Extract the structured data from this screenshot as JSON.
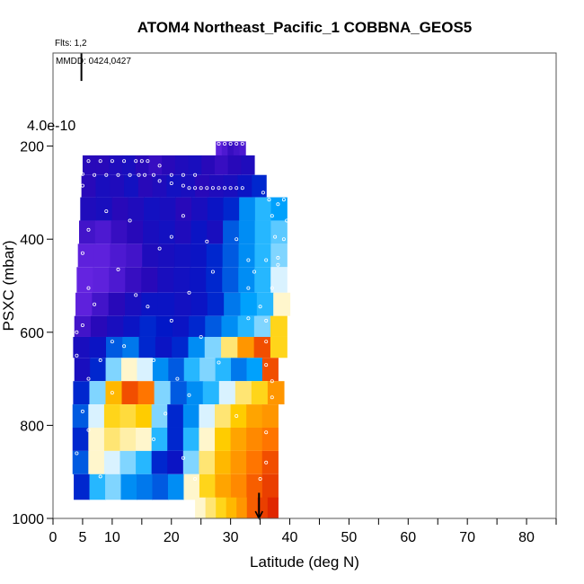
{
  "chart_data": {
    "type": "heatmap",
    "title": "ATOM4 Northeast_Pacific_1 COBBNA_GEOS5",
    "annotations": {
      "flights": "Flts: 1,2",
      "dates": "MMDD: 0424,0427",
      "scale": "4.0e-10"
    },
    "xlabel": "Latitude (deg N)",
    "ylabel": "PSXC (mbar)",
    "xlim": [
      0,
      85
    ],
    "ylim": [
      1000,
      0
    ],
    "x_ticks": [
      0,
      5,
      10,
      20,
      30,
      40,
      50,
      60,
      70,
      80
    ],
    "x_tick_labels": [
      "0",
      "5",
      "10",
      "20",
      "30",
      "40",
      "50",
      "60",
      "70",
      "80"
    ],
    "x_minor_ticks": [
      15,
      25,
      35,
      45,
      55,
      65,
      75,
      85
    ],
    "y_ticks": [
      200,
      400,
      600,
      800,
      1000
    ],
    "y_tick_labels": [
      "200",
      "400",
      "600",
      "800",
      "1000"
    ],
    "colormap": [
      "#7a2ff0",
      "#2a08b8",
      "#0018c8",
      "#00aaff",
      "#ffffff",
      "#ffd000",
      "#ff7000",
      "#d00000"
    ],
    "grid": false,
    "rows": [
      {
        "p": [
          190,
          225
        ],
        "lat": [
          27.5,
          32.5
        ],
        "values": [
          0.05,
          0.08,
          0.12,
          0.1,
          0.08
        ]
      },
      {
        "p": [
          220,
          262
        ],
        "lat": [
          5,
          34
        ],
        "values": [
          0.15,
          0.15,
          0.18,
          0.2,
          0.15,
          0.12,
          0.15,
          0.18,
          0.2,
          0.15,
          0.12,
          0.15,
          0.18
        ]
      },
      {
        "p": [
          262,
          310
        ],
        "lat": [
          4.8,
          36
        ],
        "values": [
          0.15,
          0.2,
          0.18,
          0.22,
          0.15,
          0.18,
          0.22,
          0.2,
          0.15,
          0.18,
          0.2,
          0.25,
          0.3
        ]
      },
      {
        "p": [
          310,
          360
        ],
        "lat": [
          4.6,
          39.5
        ],
        "values": [
          0.18,
          0.2,
          0.15,
          0.18,
          0.22,
          0.2,
          0.15,
          0.2,
          0.25,
          0.3,
          0.4,
          0.45,
          0.42
        ]
      },
      {
        "p": [
          360,
          410
        ],
        "lat": [
          4.4,
          39.5
        ],
        "values": [
          0.1,
          0.08,
          0.12,
          0.15,
          0.2,
          0.22,
          0.18,
          0.25,
          0.2,
          0.35,
          0.4,
          0.45,
          0.48
        ]
      },
      {
        "p": [
          410,
          460
        ],
        "lat": [
          4.2,
          39.5
        ],
        "values": [
          0.05,
          0.05,
          0.08,
          0.1,
          0.18,
          0.2,
          0.22,
          0.25,
          0.3,
          0.35,
          0.4,
          0.45,
          0.5
        ]
      },
      {
        "p": [
          460,
          515
        ],
        "lat": [
          4.0,
          39.5
        ],
        "values": [
          0.04,
          0.05,
          0.08,
          0.12,
          0.15,
          0.2,
          0.22,
          0.25,
          0.3,
          0.35,
          0.4,
          0.45,
          0.55
        ]
      },
      {
        "p": [
          515,
          565
        ],
        "lat": [
          3.8,
          40
        ],
        "values": [
          0.05,
          0.1,
          0.15,
          0.2,
          0.25,
          0.25,
          0.22,
          0.25,
          0.3,
          0.38,
          0.42,
          0.45,
          0.6
        ]
      },
      {
        "p": [
          565,
          610
        ],
        "lat": [
          3.6,
          39.5
        ],
        "values": [
          0.1,
          0.15,
          0.2,
          0.25,
          0.3,
          0.28,
          0.25,
          0.3,
          0.35,
          0.4,
          0.45,
          0.5,
          0.7
        ]
      },
      {
        "p": [
          610,
          655
        ],
        "lat": [
          3.4,
          39.5
        ],
        "values": [
          0.2,
          0.25,
          0.35,
          0.38,
          0.3,
          0.25,
          0.3,
          0.4,
          0.5,
          0.65,
          0.8,
          0.9,
          0.7
        ]
      },
      {
        "p": [
          655,
          705
        ],
        "lat": [
          3.6,
          38
        ],
        "values": [
          0.2,
          0.3,
          0.5,
          0.6,
          0.55,
          0.4,
          0.35,
          0.45,
          0.5,
          0.45,
          0.38,
          0.42,
          0.9
        ]
      },
      {
        "p": [
          705,
          755
        ],
        "lat": [
          3.4,
          39
        ],
        "values": [
          0.3,
          0.5,
          0.75,
          0.9,
          0.85,
          0.5,
          0.35,
          0.4,
          0.45,
          0.55,
          0.65,
          0.7,
          0.8
        ]
      },
      {
        "p": [
          755,
          805
        ],
        "lat": [
          3.3,
          38
        ],
        "values": [
          0.35,
          0.55,
          0.7,
          0.68,
          0.72,
          0.5,
          0.3,
          0.4,
          0.55,
          0.65,
          0.72,
          0.78,
          0.8
        ]
      },
      {
        "p": [
          805,
          855
        ],
        "lat": [
          3.3,
          38
        ],
        "values": [
          0.3,
          0.6,
          0.65,
          0.62,
          0.6,
          0.45,
          0.3,
          0.45,
          0.6,
          0.72,
          0.78,
          0.82,
          0.85
        ]
      },
      {
        "p": [
          855,
          905
        ],
        "lat": [
          3.3,
          38
        ],
        "values": [
          0.35,
          0.6,
          0.55,
          0.5,
          0.45,
          0.3,
          0.25,
          0.5,
          0.65,
          0.75,
          0.8,
          0.85,
          0.9
        ]
      },
      {
        "p": [
          905,
          960
        ],
        "lat": [
          3.5,
          38
        ],
        "values": [
          0.3,
          0.45,
          0.5,
          0.4,
          0.38,
          0.35,
          0.4,
          0.6,
          0.7,
          0.78,
          0.82,
          0.88,
          0.92
        ]
      },
      {
        "p": [
          955,
          1000
        ],
        "lat": [
          24,
          38
        ],
        "values": [
          0.6,
          0.65,
          0.7,
          0.75,
          0.8,
          0.88,
          0.92,
          0.95
        ]
      }
    ],
    "points": [
      [
        28,
        195
      ],
      [
        29,
        195
      ],
      [
        30,
        195
      ],
      [
        31,
        195
      ],
      [
        32,
        195
      ],
      [
        27,
        210
      ],
      [
        6,
        232
      ],
      [
        8,
        232
      ],
      [
        10,
        232
      ],
      [
        12,
        232
      ],
      [
        14,
        232
      ],
      [
        15,
        232
      ],
      [
        16,
        232
      ],
      [
        18,
        242
      ],
      [
        5,
        260
      ],
      [
        7,
        262
      ],
      [
        9,
        262
      ],
      [
        11,
        262
      ],
      [
        13,
        262
      ],
      [
        14.5,
        262
      ],
      [
        15.5,
        262
      ],
      [
        17,
        262
      ],
      [
        20,
        262
      ],
      [
        22,
        262
      ],
      [
        24,
        262
      ],
      [
        5,
        285
      ],
      [
        18,
        275
      ],
      [
        20,
        280
      ],
      [
        22,
        285
      ],
      [
        23,
        290
      ],
      [
        24,
        290
      ],
      [
        25,
        290
      ],
      [
        26,
        290
      ],
      [
        27,
        290
      ],
      [
        28,
        290
      ],
      [
        29,
        290
      ],
      [
        30,
        290
      ],
      [
        31,
        290
      ],
      [
        32,
        290
      ],
      [
        35.5,
        300
      ],
      [
        36.5,
        315
      ],
      [
        38,
        325
      ],
      [
        39,
        315
      ],
      [
        9,
        340
      ],
      [
        13,
        360
      ],
      [
        22,
        350
      ],
      [
        37,
        350
      ],
      [
        39.5,
        360
      ],
      [
        6,
        380
      ],
      [
        20,
        395
      ],
      [
        26,
        405
      ],
      [
        31,
        400
      ],
      [
        37.5,
        395
      ],
      [
        39,
        400
      ],
      [
        5,
        430
      ],
      [
        18,
        420
      ],
      [
        33,
        445
      ],
      [
        36,
        445
      ],
      [
        38,
        440
      ],
      [
        11,
        465
      ],
      [
        27,
        470
      ],
      [
        34,
        470
      ],
      [
        38,
        455
      ],
      [
        6,
        505
      ],
      [
        14,
        520
      ],
      [
        23,
        515
      ],
      [
        33,
        505
      ],
      [
        37,
        505
      ],
      [
        7,
        540
      ],
      [
        16,
        545
      ],
      [
        35,
        545
      ],
      [
        5,
        585
      ],
      [
        20,
        575
      ],
      [
        33,
        570
      ],
      [
        36,
        575
      ],
      [
        4,
        600
      ],
      [
        10,
        620
      ],
      [
        12,
        630
      ],
      [
        25,
        610
      ],
      [
        36,
        620
      ],
      [
        4,
        650
      ],
      [
        8,
        660
      ],
      [
        17,
        660
      ],
      [
        28,
        665
      ],
      [
        36,
        670
      ],
      [
        6,
        700
      ],
      [
        21,
        700
      ],
      [
        37,
        705
      ],
      [
        10,
        730
      ],
      [
        23,
        735
      ],
      [
        37,
        740
      ],
      [
        5,
        770
      ],
      [
        19,
        775
      ],
      [
        31,
        780
      ],
      [
        6,
        810
      ],
      [
        17,
        830
      ],
      [
        36,
        815
      ],
      [
        4,
        860
      ],
      [
        22,
        870
      ],
      [
        36,
        880
      ],
      [
        8,
        910
      ],
      [
        24,
        915
      ],
      [
        35,
        915
      ]
    ],
    "arrows": [
      {
        "lat": 4.8,
        "p_from": 0,
        "p_to": 60
      },
      {
        "lat": 34.8,
        "p_from": 945,
        "p_to": 1000
      }
    ]
  }
}
